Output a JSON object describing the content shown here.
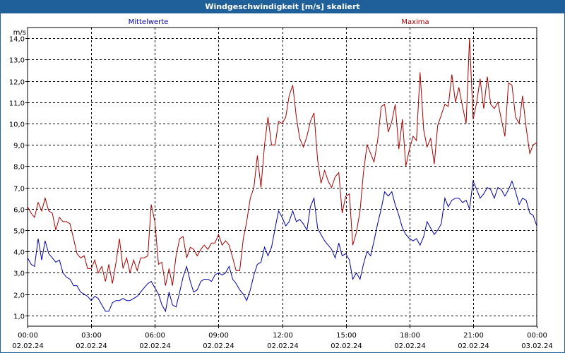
{
  "window": {
    "title": "Windgeschwindigkeit [m/s] skaliert"
  },
  "chart_data": {
    "type": "line",
    "title": "Windgeschwindigkeit [m/s] skaliert",
    "ylabel": "m/s",
    "ylim": [
      0.5,
      14.5
    ],
    "y_ticks": [
      1.0,
      2.0,
      3.0,
      4.0,
      5.0,
      6.0,
      7.0,
      8.0,
      9.0,
      10.0,
      11.0,
      12.0,
      13.0,
      14.0
    ],
    "y_tick_labels": [
      "1,0",
      "2,0",
      "3,0",
      "4,0",
      "5,0",
      "6,0",
      "7,0",
      "8,0",
      "9,0",
      "10,0",
      "11,0",
      "12,0",
      "13,0",
      "14,0"
    ],
    "xlim": [
      0,
      24
    ],
    "x_unit": "hours since 02.02.24 00:00",
    "x_ticks": [
      {
        "time": "00:00",
        "date": "02.02.24"
      },
      {
        "time": "03:00",
        "date": "02.02.24"
      },
      {
        "time": "06:00",
        "date": "02.02.24"
      },
      {
        "time": "09:00",
        "date": "02.02.24"
      },
      {
        "time": "12:00",
        "date": "02.02.24"
      },
      {
        "time": "15:00",
        "date": "02.02.24"
      },
      {
        "time": "18:00",
        "date": "02.02.24"
      },
      {
        "time": "21:00",
        "date": "02.02.24"
      },
      {
        "time": "00:00",
        "date": "03.02.24"
      }
    ],
    "grid": true,
    "series": [
      {
        "name": "Mittelwerte",
        "color": "#0000aa",
        "legend_position": "top-left",
        "points": [
          [
            0.0,
            3.7
          ],
          [
            0.17,
            3.4
          ],
          [
            0.33,
            3.3
          ],
          [
            0.5,
            4.6
          ],
          [
            0.67,
            3.6
          ],
          [
            0.83,
            4.5
          ],
          [
            1.0,
            3.9
          ],
          [
            1.17,
            3.7
          ],
          [
            1.33,
            3.5
          ],
          [
            1.5,
            3.6
          ],
          [
            1.67,
            3.0
          ],
          [
            1.83,
            2.8
          ],
          [
            2.0,
            2.7
          ],
          [
            2.17,
            2.4
          ],
          [
            2.33,
            2.4
          ],
          [
            2.5,
            2.1
          ],
          [
            2.67,
            2.0
          ],
          [
            2.83,
            1.9
          ],
          [
            3.0,
            1.7
          ],
          [
            3.17,
            1.9
          ],
          [
            3.33,
            1.8
          ],
          [
            3.5,
            1.5
          ],
          [
            3.67,
            1.2
          ],
          [
            3.83,
            1.2
          ],
          [
            4.0,
            1.6
          ],
          [
            4.17,
            1.7
          ],
          [
            4.33,
            1.7
          ],
          [
            4.5,
            1.8
          ],
          [
            4.67,
            1.7
          ],
          [
            4.83,
            1.7
          ],
          [
            5.0,
            1.8
          ],
          [
            5.17,
            1.9
          ],
          [
            5.33,
            2.1
          ],
          [
            5.5,
            2.3
          ],
          [
            5.67,
            2.5
          ],
          [
            5.83,
            2.6
          ],
          [
            6.0,
            2.3
          ],
          [
            6.17,
            2.0
          ],
          [
            6.33,
            1.5
          ],
          [
            6.5,
            1.2
          ],
          [
            6.67,
            2.1
          ],
          [
            6.83,
            1.5
          ],
          [
            7.0,
            1.4
          ],
          [
            7.17,
            2.1
          ],
          [
            7.33,
            2.8
          ],
          [
            7.5,
            3.3
          ],
          [
            7.67,
            2.6
          ],
          [
            7.83,
            2.1
          ],
          [
            8.0,
            2.2
          ],
          [
            8.17,
            2.6
          ],
          [
            8.33,
            2.7
          ],
          [
            8.5,
            2.7
          ],
          [
            8.67,
            2.6
          ],
          [
            8.83,
            2.9
          ],
          [
            9.0,
            3.0
          ],
          [
            9.17,
            2.9
          ],
          [
            9.33,
            3.0
          ],
          [
            9.5,
            3.3
          ],
          [
            9.67,
            2.7
          ],
          [
            9.83,
            2.5
          ],
          [
            10.0,
            2.2
          ],
          [
            10.17,
            2.0
          ],
          [
            10.33,
            1.7
          ],
          [
            10.5,
            2.2
          ],
          [
            10.67,
            2.9
          ],
          [
            10.83,
            3.4
          ],
          [
            11.0,
            3.5
          ],
          [
            11.17,
            4.2
          ],
          [
            11.33,
            3.8
          ],
          [
            11.5,
            4.2
          ],
          [
            11.67,
            5.1
          ],
          [
            11.83,
            5.9
          ],
          [
            12.0,
            5.6
          ],
          [
            12.17,
            5.2
          ],
          [
            12.33,
            5.4
          ],
          [
            12.5,
            5.9
          ],
          [
            12.67,
            5.4
          ],
          [
            12.83,
            5.5
          ],
          [
            13.0,
            5.3
          ],
          [
            13.17,
            5.0
          ],
          [
            13.33,
            6.1
          ],
          [
            13.5,
            6.5
          ],
          [
            13.67,
            5.1
          ],
          [
            13.83,
            4.8
          ],
          [
            14.0,
            4.5
          ],
          [
            14.17,
            4.3
          ],
          [
            14.33,
            4.1
          ],
          [
            14.5,
            3.7
          ],
          [
            14.67,
            4.4
          ],
          [
            14.83,
            3.8
          ],
          [
            15.0,
            3.9
          ],
          [
            15.17,
            3.6
          ],
          [
            15.33,
            2.7
          ],
          [
            15.5,
            3.0
          ],
          [
            15.67,
            2.7
          ],
          [
            15.83,
            3.4
          ],
          [
            16.0,
            4.0
          ],
          [
            16.17,
            3.8
          ],
          [
            16.33,
            4.5
          ],
          [
            16.5,
            5.3
          ],
          [
            16.67,
            6.0
          ],
          [
            16.83,
            6.8
          ],
          [
            17.0,
            6.6
          ],
          [
            17.17,
            6.8
          ],
          [
            17.33,
            6.2
          ],
          [
            17.5,
            5.7
          ],
          [
            17.67,
            5.1
          ],
          [
            17.83,
            4.8
          ],
          [
            18.0,
            4.6
          ],
          [
            18.17,
            4.5
          ],
          [
            18.33,
            4.6
          ],
          [
            18.5,
            4.3
          ],
          [
            18.67,
            4.7
          ],
          [
            18.83,
            5.4
          ],
          [
            19.0,
            5.1
          ],
          [
            19.17,
            4.8
          ],
          [
            19.33,
            5.0
          ],
          [
            19.5,
            5.3
          ],
          [
            19.67,
            6.5
          ],
          [
            19.83,
            6.1
          ],
          [
            20.0,
            6.4
          ],
          [
            20.17,
            6.5
          ],
          [
            20.33,
            6.5
          ],
          [
            20.5,
            6.3
          ],
          [
            20.67,
            6.4
          ],
          [
            20.83,
            6.0
          ],
          [
            21.0,
            7.3
          ],
          [
            21.17,
            6.9
          ],
          [
            21.33,
            6.5
          ],
          [
            21.5,
            6.7
          ],
          [
            21.67,
            7.0
          ],
          [
            21.83,
            6.9
          ],
          [
            22.0,
            6.5
          ],
          [
            22.17,
            7.0
          ],
          [
            22.33,
            6.9
          ],
          [
            22.5,
            6.6
          ],
          [
            22.67,
            6.9
          ],
          [
            22.83,
            7.3
          ],
          [
            23.0,
            6.8
          ],
          [
            23.17,
            6.2
          ],
          [
            23.33,
            6.5
          ],
          [
            23.5,
            6.4
          ],
          [
            23.67,
            5.8
          ],
          [
            23.83,
            5.7
          ],
          [
            24.0,
            5.2
          ]
        ]
      },
      {
        "name": "Maxima",
        "color": "#aa0000",
        "legend_position": "top-right",
        "points": [
          [
            0.0,
            6.1
          ],
          [
            0.17,
            5.8
          ],
          [
            0.33,
            5.6
          ],
          [
            0.5,
            6.3
          ],
          [
            0.67,
            5.9
          ],
          [
            0.83,
            6.5
          ],
          [
            1.0,
            5.9
          ],
          [
            1.17,
            5.8
          ],
          [
            1.33,
            5.0
          ],
          [
            1.5,
            5.6
          ],
          [
            1.67,
            5.4
          ],
          [
            1.83,
            5.4
          ],
          [
            2.0,
            5.3
          ],
          [
            2.17,
            4.6
          ],
          [
            2.33,
            3.9
          ],
          [
            2.5,
            3.7
          ],
          [
            2.67,
            3.8
          ],
          [
            2.83,
            3.2
          ],
          [
            3.0,
            3.2
          ],
          [
            3.17,
            3.6
          ],
          [
            3.33,
            3.0
          ],
          [
            3.5,
            3.3
          ],
          [
            3.67,
            2.6
          ],
          [
            3.83,
            3.4
          ],
          [
            4.0,
            2.5
          ],
          [
            4.17,
            3.5
          ],
          [
            4.33,
            4.6
          ],
          [
            4.5,
            3.2
          ],
          [
            4.67,
            3.7
          ],
          [
            4.83,
            3.0
          ],
          [
            5.0,
            3.6
          ],
          [
            5.17,
            3.1
          ],
          [
            5.33,
            3.7
          ],
          [
            5.5,
            3.7
          ],
          [
            5.67,
            3.8
          ],
          [
            5.83,
            6.2
          ],
          [
            6.0,
            5.4
          ],
          [
            6.17,
            3.4
          ],
          [
            6.33,
            3.5
          ],
          [
            6.5,
            2.4
          ],
          [
            6.67,
            3.2
          ],
          [
            6.83,
            2.4
          ],
          [
            7.0,
            3.8
          ],
          [
            7.17,
            4.6
          ],
          [
            7.33,
            4.7
          ],
          [
            7.5,
            3.7
          ],
          [
            7.67,
            4.2
          ],
          [
            7.83,
            4.1
          ],
          [
            8.0,
            3.8
          ],
          [
            8.17,
            4.1
          ],
          [
            8.33,
            4.3
          ],
          [
            8.5,
            4.1
          ],
          [
            8.67,
            4.4
          ],
          [
            8.83,
            4.4
          ],
          [
            9.0,
            4.8
          ],
          [
            9.17,
            4.3
          ],
          [
            9.33,
            4.5
          ],
          [
            9.5,
            4.3
          ],
          [
            9.67,
            3.7
          ],
          [
            9.83,
            3.1
          ],
          [
            10.0,
            3.1
          ],
          [
            10.17,
            4.6
          ],
          [
            10.33,
            5.4
          ],
          [
            10.5,
            6.5
          ],
          [
            10.67,
            7.0
          ],
          [
            10.83,
            8.5
          ],
          [
            11.0,
            7.0
          ],
          [
            11.17,
            9.0
          ],
          [
            11.33,
            10.3
          ],
          [
            11.5,
            9.0
          ],
          [
            11.67,
            9.0
          ],
          [
            11.83,
            10.1
          ],
          [
            12.0,
            10.0
          ],
          [
            12.17,
            10.3
          ],
          [
            12.33,
            11.3
          ],
          [
            12.5,
            11.8
          ],
          [
            12.67,
            10.3
          ],
          [
            12.83,
            9.3
          ],
          [
            13.0,
            8.9
          ],
          [
            13.17,
            9.4
          ],
          [
            13.33,
            10.1
          ],
          [
            13.5,
            10.5
          ],
          [
            13.67,
            8.3
          ],
          [
            13.83,
            7.2
          ],
          [
            14.0,
            7.8
          ],
          [
            14.17,
            7.3
          ],
          [
            14.33,
            7.0
          ],
          [
            14.5,
            7.5
          ],
          [
            14.67,
            7.7
          ],
          [
            14.83,
            5.8
          ],
          [
            15.0,
            6.6
          ],
          [
            15.17,
            6.7
          ],
          [
            15.33,
            4.3
          ],
          [
            15.5,
            4.9
          ],
          [
            15.67,
            5.9
          ],
          [
            15.83,
            7.7
          ],
          [
            16.0,
            9.0
          ],
          [
            16.17,
            8.6
          ],
          [
            16.33,
            8.2
          ],
          [
            16.5,
            9.2
          ],
          [
            16.67,
            10.8
          ],
          [
            16.83,
            10.9
          ],
          [
            17.0,
            9.6
          ],
          [
            17.17,
            10.1
          ],
          [
            17.33,
            10.9
          ],
          [
            17.5,
            8.8
          ],
          [
            17.67,
            10.2
          ],
          [
            17.83,
            8.0
          ],
          [
            18.0,
            8.8
          ],
          [
            18.17,
            9.4
          ],
          [
            18.33,
            9.2
          ],
          [
            18.5,
            12.4
          ],
          [
            18.67,
            9.7
          ],
          [
            18.83,
            8.9
          ],
          [
            19.0,
            9.3
          ],
          [
            19.17,
            8.1
          ],
          [
            19.33,
            9.9
          ],
          [
            19.5,
            10.4
          ],
          [
            19.67,
            10.9
          ],
          [
            19.83,
            10.8
          ],
          [
            20.0,
            12.3
          ],
          [
            20.17,
            11.0
          ],
          [
            20.33,
            11.7
          ],
          [
            20.5,
            10.8
          ],
          [
            20.67,
            10.0
          ],
          [
            20.83,
            14.0
          ],
          [
            21.0,
            10.2
          ],
          [
            21.17,
            11.0
          ],
          [
            21.33,
            12.1
          ],
          [
            21.5,
            10.7
          ],
          [
            21.67,
            12.2
          ],
          [
            21.83,
            10.9
          ],
          [
            22.0,
            10.7
          ],
          [
            22.17,
            11.0
          ],
          [
            22.33,
            10.2
          ],
          [
            22.5,
            9.4
          ],
          [
            22.67,
            11.9
          ],
          [
            22.83,
            11.8
          ],
          [
            23.0,
            10.3
          ],
          [
            23.17,
            10.0
          ],
          [
            23.33,
            11.3
          ],
          [
            23.5,
            9.8
          ],
          [
            23.67,
            8.6
          ],
          [
            23.83,
            9.0
          ],
          [
            24.0,
            9.1
          ]
        ]
      }
    ]
  }
}
